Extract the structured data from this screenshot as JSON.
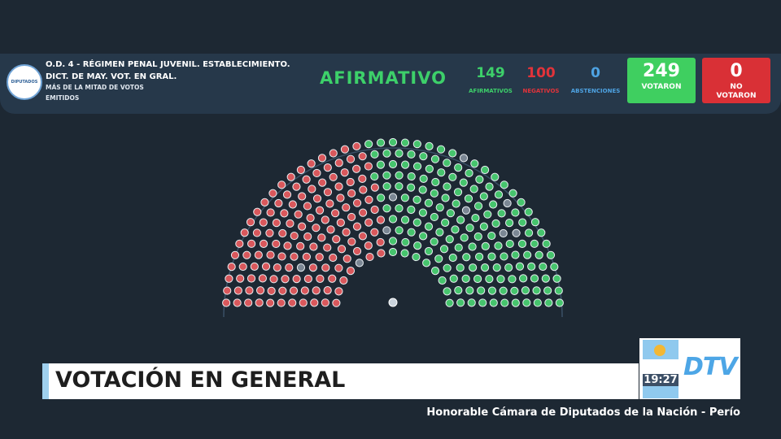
{
  "header": {
    "logo": "DIPUTADOS",
    "title": "O.D. 4 - RÉGIMEN PENAL JUVENIL. ESTABLECIMIENTO. DICT. DE MAY. VOT. EN GRAL.",
    "subtitle": "MÁS DE LA MITAD DE VOTOS EMITIDOS",
    "result": "AFIRMATIVO",
    "tallies": [
      {
        "value": "149",
        "label": "AFIRMATIVOS"
      },
      {
        "value": "100",
        "label": "NEGATIVOS"
      },
      {
        "value": "0",
        "label": "ABSTENCIONES"
      }
    ],
    "voted": {
      "value": "249",
      "label": "VOTARON"
    },
    "not_voted": {
      "value": "0",
      "label": "NO VOTARON"
    }
  },
  "lower_third": {
    "title": "VOTACIÓN EN GENERAL",
    "time": "19:27",
    "channel": "DTV",
    "ticker": "Honorable Cámara de Diputados de la Nación - Perío"
  }
}
